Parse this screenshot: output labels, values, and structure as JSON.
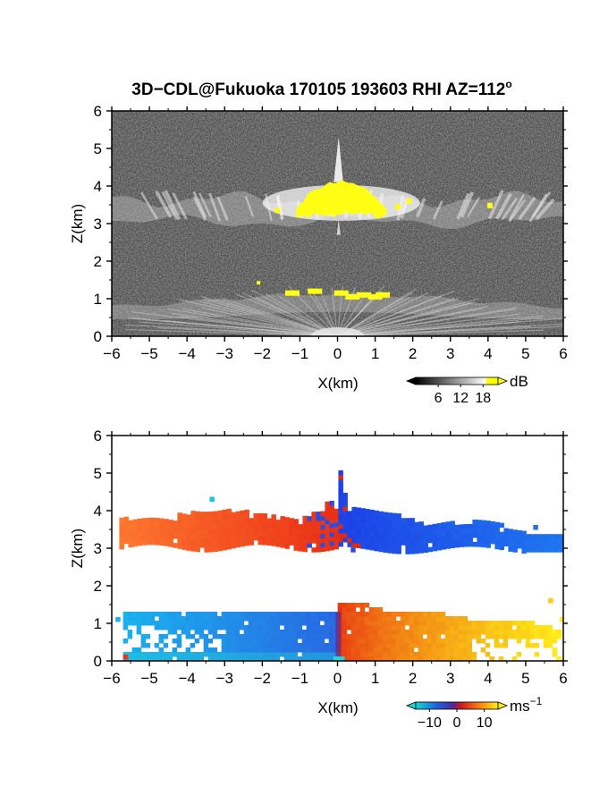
{
  "title": "3D−CDL@Fukuoka 170105 193603 RHI AZ=112",
  "title_suffix": "o",
  "chart_data": [
    {
      "type": "heatmap",
      "name": "reflectivity",
      "xlabel": "X(km)",
      "ylabel": "Z(km)",
      "xlim": [
        -6,
        6
      ],
      "ylim": [
        0,
        6
      ],
      "xticks": [
        "−6",
        "−5",
        "−4",
        "−3",
        "−2",
        "−1",
        "0",
        "1",
        "2",
        "3",
        "4",
        "5",
        "6"
      ],
      "yticks": [
        "0",
        "1",
        "2",
        "3",
        "4",
        "5",
        "6"
      ],
      "colorscale": "grayscale (black to white), saturating yellow",
      "colorbar": {
        "unit": "dB",
        "ticks": [
          "6",
          "12",
          "18"
        ],
        "range": [
          0,
          22
        ]
      },
      "colors": {
        "background": "#3a3a3a",
        "low": "#000000",
        "high": "#ffffff",
        "saturated": "#ffff00"
      },
      "features": [
        {
          "label": "upper cloud layer",
          "x_range": [
            -6,
            6
          ],
          "z_range": [
            2.9,
            3.9
          ]
        },
        {
          "label": "saturated core aloft",
          "x_range": [
            -1.1,
            1.3
          ],
          "z_range": [
            3.1,
            4.1
          ]
        },
        {
          "label": "spike above origin",
          "x_range": [
            -0.1,
            0.15
          ],
          "z_range": [
            4.1,
            5.3
          ]
        },
        {
          "label": "lower layer",
          "x_range": [
            -6,
            6
          ],
          "z_range": [
            0,
            1.3
          ]
        }
      ]
    },
    {
      "type": "heatmap",
      "name": "doppler velocity",
      "xlabel": "X(km)",
      "ylabel": "Z(km)",
      "xlim": [
        -6,
        6
      ],
      "ylim": [
        0,
        6
      ],
      "xticks": [
        "−6",
        "−5",
        "−4",
        "−3",
        "−2",
        "−1",
        "0",
        "1",
        "2",
        "3",
        "4",
        "5",
        "6"
      ],
      "yticks": [
        "0",
        "1",
        "2",
        "3",
        "4",
        "5",
        "6"
      ],
      "colorscale": "cyan-blue-red-yellow diverging",
      "colorbar": {
        "unit": "ms",
        "unit_exp": "−1",
        "ticks": [
          "−10",
          "0",
          "10"
        ],
        "range": [
          -15,
          15
        ]
      },
      "colors": {
        "neg_far": "#14a8e6",
        "neg": "#1e5ad6",
        "zero": "#c81414",
        "pos": "#ff6a10",
        "pos_far": "#ffee10"
      },
      "features": [
        {
          "label": "upper layer, left of origin",
          "x_range": [
            -5.8,
            0
          ],
          "z_range": [
            2.9,
            4.0
          ],
          "velocity": 5
        },
        {
          "label": "upper layer, right of origin",
          "x_range": [
            0,
            6
          ],
          "z_range": [
            2.8,
            4.5
          ],
          "velocity": -5
        },
        {
          "label": "lower layer, left of origin",
          "x_range": [
            -5.7,
            0
          ],
          "z_range": [
            0,
            1.3
          ],
          "velocity": -10
        },
        {
          "label": "lower layer, right of origin",
          "x_range": [
            0,
            5.9
          ],
          "z_range": [
            0,
            1.5
          ],
          "velocity": 10
        }
      ]
    }
  ]
}
